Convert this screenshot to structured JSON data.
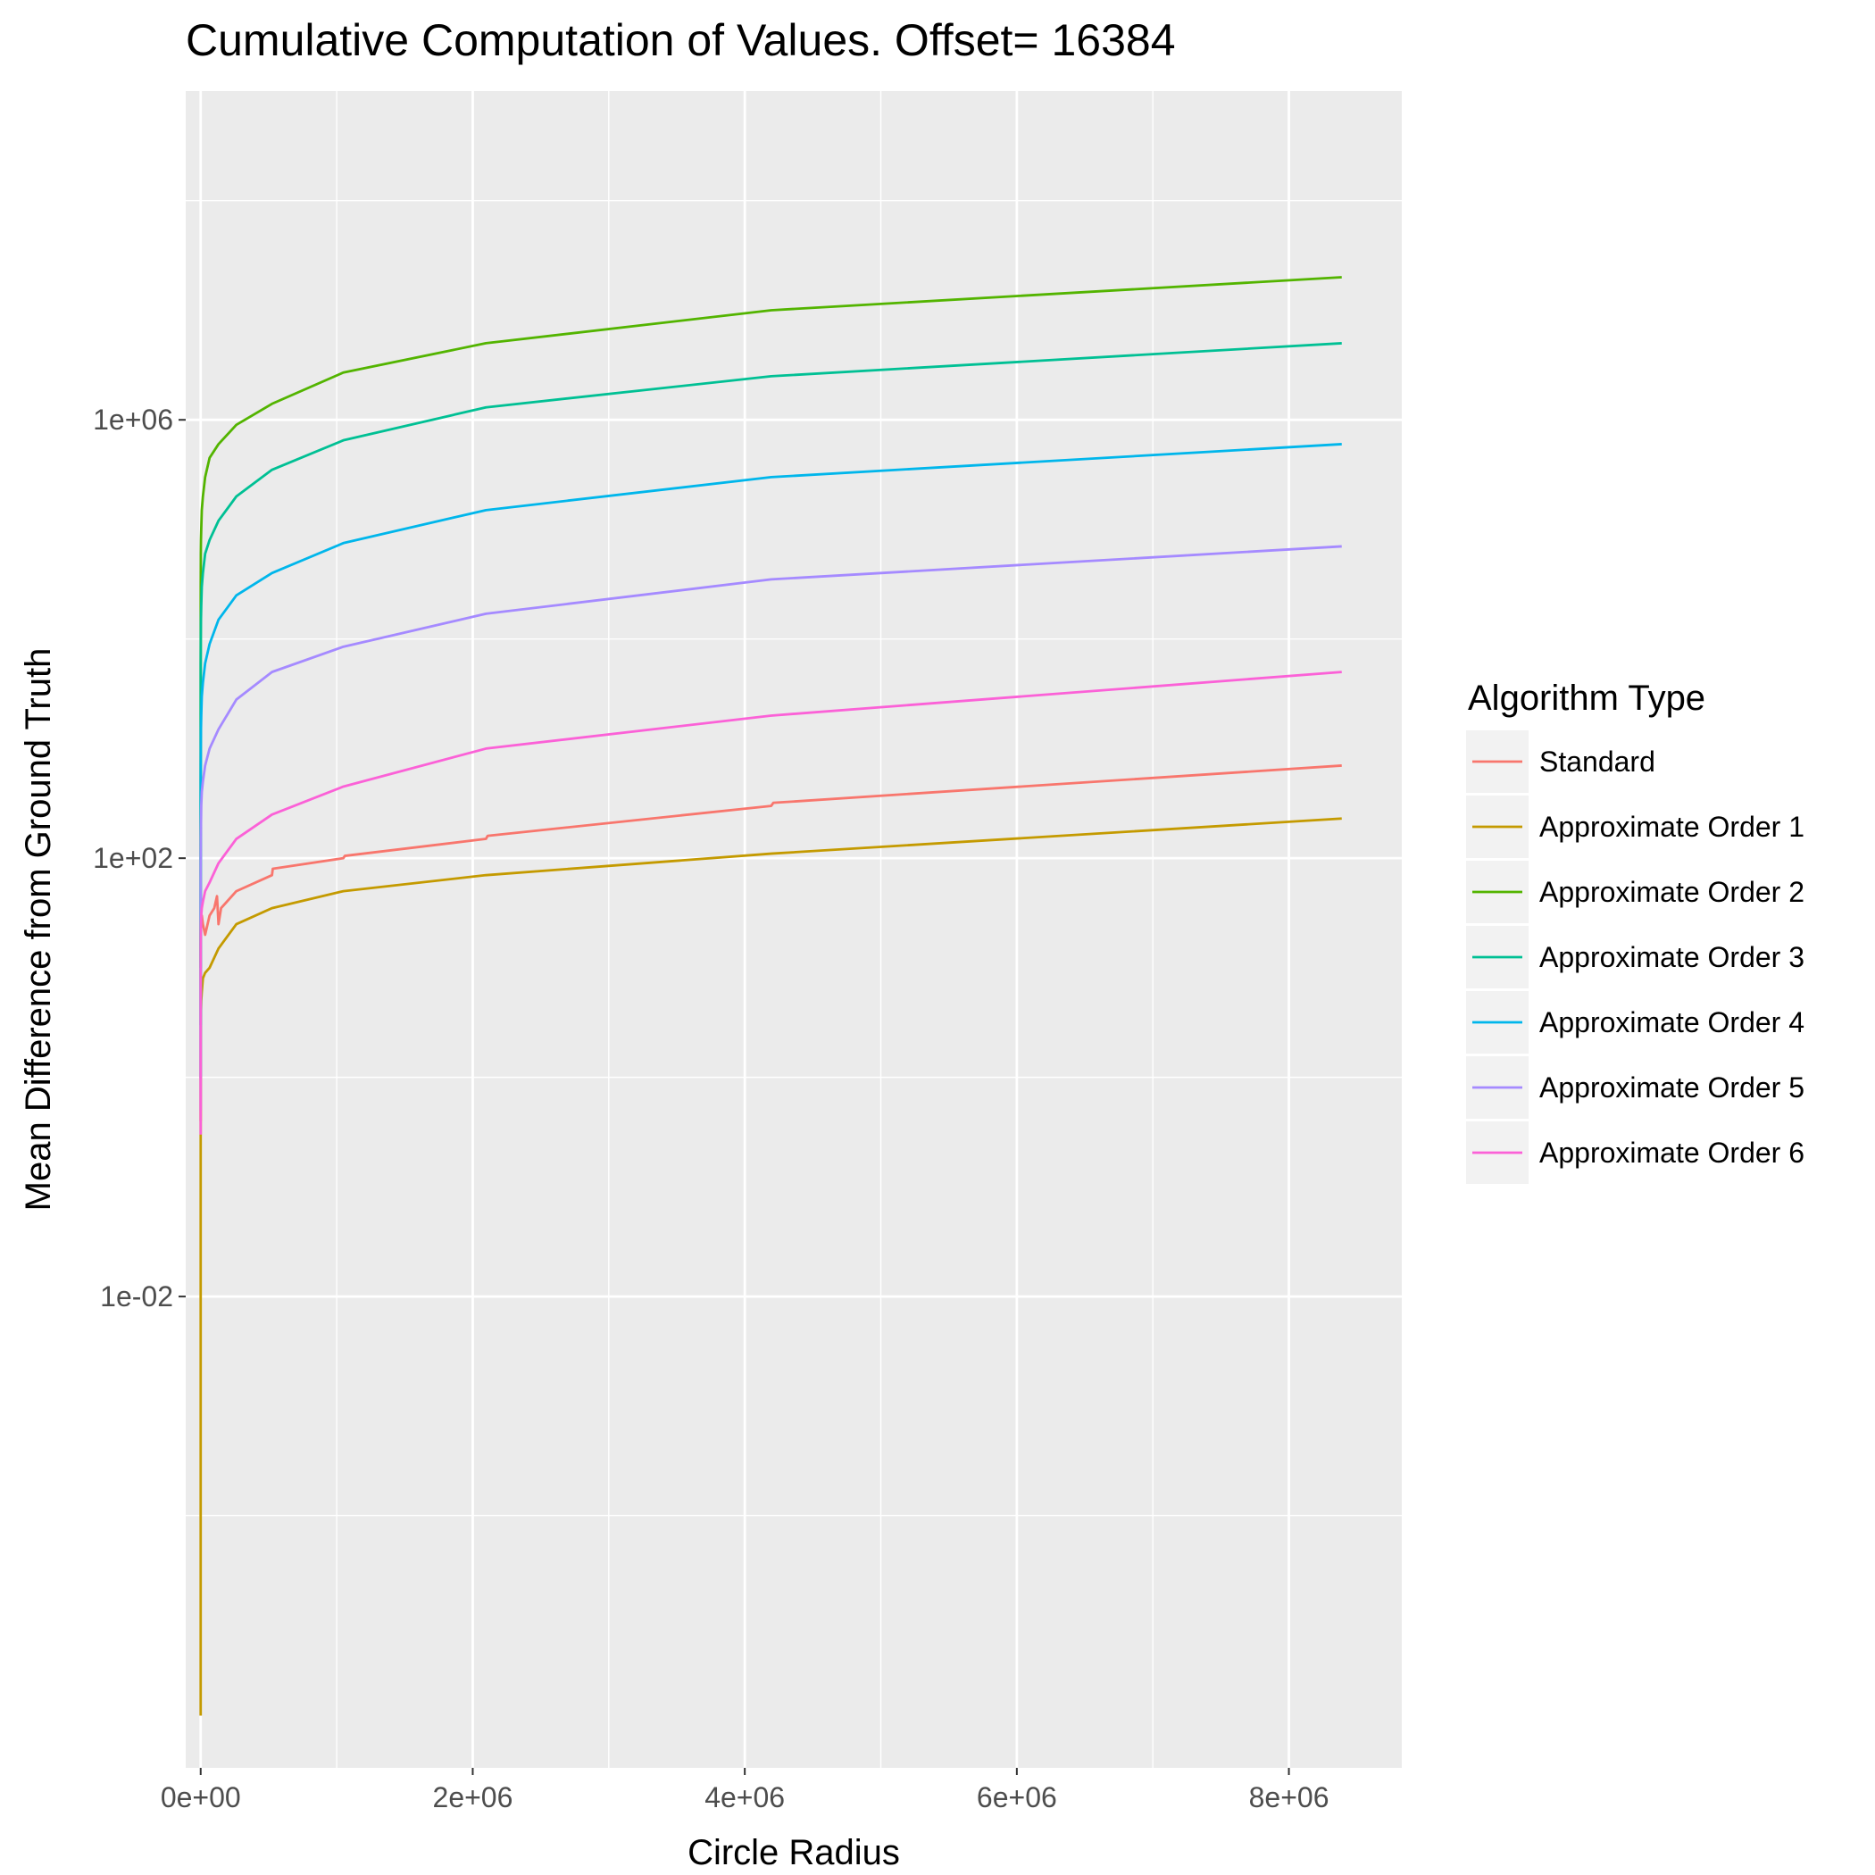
{
  "chart_data": {
    "type": "line",
    "title": "Cumulative Computation of Values. Offset= 16384",
    "xlabel": "Circle Radius",
    "ylabel": "Mean Difference from Ground Truth",
    "y_scale": "log10",
    "xlim": [
      -110000,
      8830000
    ],
    "ylim": [
      5e-07,
      1000000000.0
    ],
    "x_ticks": [
      {
        "value": 0,
        "label": "0e+00"
      },
      {
        "value": 2000000,
        "label": "2e+06"
      },
      {
        "value": 4000000,
        "label": "4e+06"
      },
      {
        "value": 6000000,
        "label": "6e+06"
      },
      {
        "value": 8000000,
        "label": "8e+06"
      }
    ],
    "y_ticks": [
      {
        "value": 0.01,
        "label": "1e-02"
      },
      {
        "value": 100,
        "label": "1e+02"
      },
      {
        "value": 1000000,
        "label": "1e+06"
      }
    ],
    "y_minor_ticks": [
      0.0001,
      1,
      10000,
      100000000
    ],
    "grid": true,
    "legend": {
      "title": "Algorithm Type",
      "position": "right"
    },
    "series": [
      {
        "name": "Standard",
        "color": "#F8766D",
        "x": [
          1,
          4,
          8,
          16,
          32,
          64,
          128,
          256,
          512,
          1024,
          2048,
          4096,
          8192,
          16384,
          32768,
          65536,
          100000,
          120000,
          131072,
          150000,
          262144,
          524288,
          530000,
          1048576,
          1060000,
          2097152,
          2110000,
          4194304,
          4210000,
          8388608
        ],
        "y": [
          0.4,
          1.5,
          4,
          8,
          12,
          16,
          18,
          20,
          22,
          24,
          26,
          28,
          30,
          25,
          20,
          30,
          35,
          45,
          25,
          35,
          50,
          70,
          80,
          100,
          105,
          150,
          160,
          300,
          320,
          700
        ]
      },
      {
        "name": "Approximate Order 1",
        "color": "#C49A00",
        "x": [
          1,
          2,
          4,
          8,
          16,
          32,
          64,
          128,
          256,
          512,
          1024,
          2048,
          4096,
          8192,
          16384,
          32768,
          65536,
          131072,
          262144,
          524288,
          1048576,
          2097152,
          4194304,
          8388608
        ],
        "y": [
          1.5e-06,
          1e-05,
          0.0001,
          0.001,
          0.01,
          0.05,
          0.2,
          0.5,
          1,
          2,
          3,
          4,
          5,
          6,
          8,
          9,
          10,
          15,
          25,
          35,
          50,
          70,
          110,
          230
        ]
      },
      {
        "name": "Approximate Order 2",
        "color": "#53B400",
        "x": [
          1,
          4,
          16,
          64,
          256,
          1024,
          2048,
          4096,
          8192,
          16384,
          32768,
          65536,
          131072,
          262144,
          524288,
          1048576,
          2097152,
          4194304,
          8388608
        ],
        "y": [
          10,
          100,
          1000,
          10000,
          30000,
          60000,
          80000,
          100000,
          150000,
          200000,
          300000,
          450000,
          600000,
          900000,
          1400000,
          2700000,
          5000000,
          10000000,
          20000000
        ]
      },
      {
        "name": "Approximate Order 3",
        "color": "#00C094",
        "x": [
          1,
          4,
          16,
          64,
          256,
          1024,
          2048,
          4096,
          8192,
          16384,
          32768,
          65536,
          131072,
          262144,
          524288,
          1048576,
          2097152,
          4194304,
          8388608
        ],
        "y": [
          3,
          30,
          200,
          2000,
          6000,
          10000,
          15000,
          20000,
          30000,
          40000,
          60000,
          80000,
          120000,
          200000,
          350000,
          650000,
          1300000,
          2500000,
          5000000
        ]
      },
      {
        "name": "Approximate Order 4",
        "color": "#00B6EB",
        "x": [
          1,
          4,
          16,
          64,
          256,
          1024,
          2048,
          4096,
          8192,
          16384,
          32768,
          65536,
          131072,
          262144,
          524288,
          1048576,
          2097152,
          4194304,
          8388608
        ],
        "y": [
          1,
          10,
          50,
          200,
          500,
          1000,
          1500,
          2000,
          3000,
          4000,
          6000,
          9000,
          15000,
          25000,
          40000,
          75000,
          150000,
          300000,
          600000
        ]
      },
      {
        "name": "Approximate Order 5",
        "color": "#A58AFF",
        "x": [
          1,
          4,
          16,
          64,
          256,
          1024,
          2048,
          4096,
          8192,
          16384,
          32768,
          65536,
          131072,
          262144,
          524288,
          1048576,
          2097152,
          4194304,
          8388608
        ],
        "y": [
          0.5,
          3,
          10,
          30,
          80,
          150,
          200,
          300,
          400,
          500,
          700,
          1000,
          1500,
          2800,
          5000,
          8500,
          17000,
          35000,
          70000
        ]
      },
      {
        "name": "Approximate Order 6",
        "color": "#FB61D7",
        "x": [
          1,
          4,
          16,
          64,
          256,
          1024,
          2048,
          4096,
          8192,
          16384,
          32768,
          65536,
          131072,
          262144,
          524288,
          1048576,
          2097152,
          4194304,
          8388608
        ],
        "y": [
          0.3,
          1,
          5,
          10,
          15,
          20,
          25,
          30,
          35,
          40,
          50,
          60,
          90,
          150,
          250,
          450,
          1000,
          2000,
          5000
        ]
      }
    ]
  }
}
